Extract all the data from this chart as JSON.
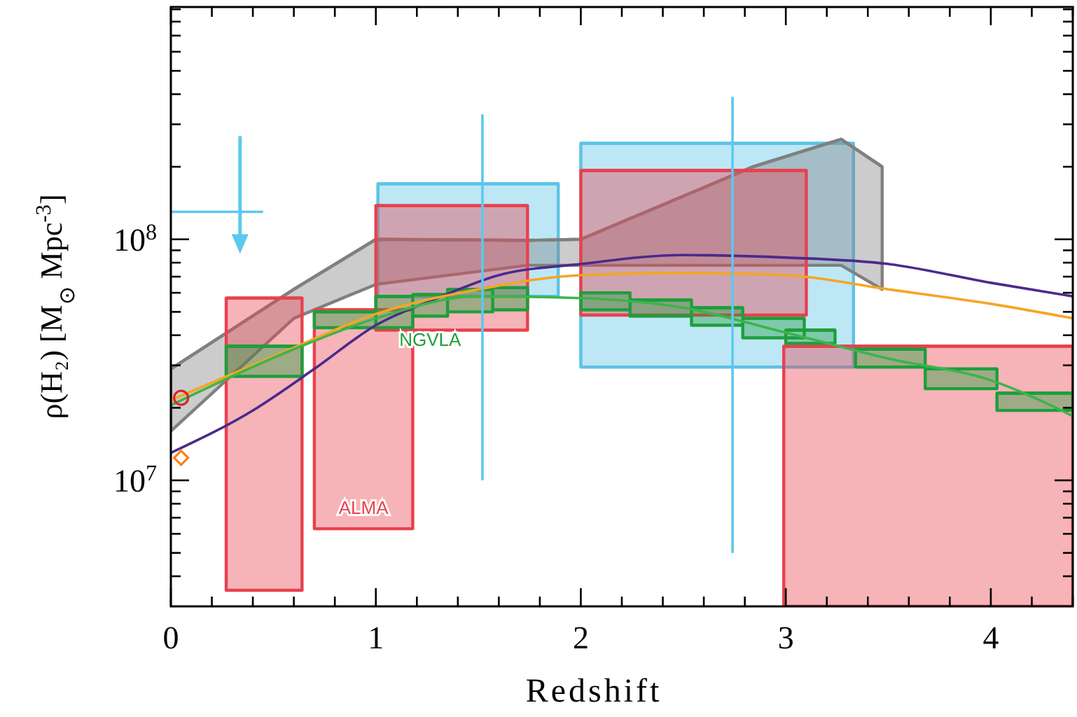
{
  "chart_data": {
    "type": "line",
    "xlabel": "Redshift",
    "ylabel": "ρ(H₂) [M$_{⊙}$ Mpc$^{-3}$]",
    "log": "y",
    "xlim": [
      0,
      4.4
    ],
    "xticks": [
      0,
      {
        "value": 0.2,
        "label": null
      },
      {
        "value": 0.4,
        "label": null
      },
      {
        "value": 0.6,
        "label": null
      },
      {
        "value": 0.8,
        "label": null
      },
      1,
      {
        "value": 1.2,
        "label": null
      },
      {
        "value": 1.4,
        "label": null
      },
      {
        "value": 1.6,
        "label": null
      },
      {
        "value": 1.8,
        "label": null
      },
      2,
      {
        "value": 2.2,
        "label": null
      },
      {
        "value": 2.4,
        "label": null
      },
      {
        "value": 2.6,
        "label": null
      },
      {
        "value": 2.8,
        "label": null
      },
      3,
      {
        "value": 3.2,
        "label": null
      },
      {
        "value": 3.4,
        "label": null
      },
      {
        "value": 3.6,
        "label": null
      },
      {
        "value": 3.8,
        "label": null
      },
      4,
      {
        "value": 4.2,
        "label": null
      },
      {
        "value": 4.4,
        "label": null
      }
    ],
    "ylim": [
      3000000,
      920000000
    ],
    "yticks": [
      {
        "value": 4000000,
        "label": null
      },
      {
        "value": 5000000,
        "label": null
      },
      {
        "value": 6000000,
        "label": null
      },
      {
        "value": 7000000,
        "label": null
      },
      {
        "value": 8000000,
        "label": null
      },
      {
        "value": 9000000,
        "label": null
      },
      {
        "value": 10000000,
        "label": "10$^{7}$"
      },
      {
        "value": 20000000,
        "label": null
      },
      {
        "value": 30000000,
        "label": null
      },
      {
        "value": 40000000,
        "label": null
      },
      {
        "value": 50000000,
        "label": null
      },
      {
        "value": 60000000,
        "label": null
      },
      {
        "value": 70000000,
        "label": null
      },
      {
        "value": 80000000,
        "label": null
      },
      {
        "value": 90000000,
        "label": null
      },
      {
        "value": 100000000,
        "label": "10$^{8}$"
      },
      {
        "value": 200000000,
        "label": null
      },
      {
        "value": 300000000,
        "label": null
      },
      {
        "value": 400000000,
        "label": null
      },
      {
        "value": 500000000,
        "label": null
      },
      {
        "value": 600000000,
        "label": null
      },
      {
        "value": 700000000,
        "label": null
      },
      {
        "value": 800000000,
        "label": null
      },
      {
        "value": 900000000,
        "label": null
      }
    ],
    "series": [
      {
        "color": "#5cc3e6",
        "x": [
          1.01,
          1.89,
          null,
          2.0,
          3.33
        ],
        "values": [
          170000000,
          170000000,
          null,
          250000000,
          250000000
        ],
        "upper": [
          170000000,
          170000000,
          null,
          250000000,
          250000000
        ],
        "lower": [
          58000000,
          58000000,
          null,
          29500000,
          29500000
        ]
      },
      {
        "color": "#808080",
        "x": [
          0,
          0.6,
          1.0,
          1.74,
          2.0,
          2.84,
          3.27,
          3.47
        ],
        "values": [
          29000000,
          62000000,
          100000000,
          99000000,
          100000000,
          200000000,
          260000000,
          200000000
        ],
        "upper": [
          29000000,
          62000000,
          100000000,
          99000000,
          100000000,
          200000000,
          260000000,
          200000000
        ],
        "lower": [
          16000000,
          47000000,
          65000000,
          78000000,
          78000000,
          78000000,
          78000000,
          62000000
        ]
      },
      {
        "name": "ALMA",
        "color": "#e8414e",
        "x": [
          0.27,
          0.64,
          null,
          0.7,
          1.18,
          null,
          1.0,
          1.74,
          null,
          2.0,
          3.1,
          null,
          2.99,
          4.4
        ],
        "values": [
          57000000,
          57000000,
          null,
          51000000,
          51000000,
          null,
          138000000,
          138000000,
          null,
          193000000,
          193000000,
          null,
          36000000,
          36000000
        ],
        "upper": [
          57000000,
          57000000,
          null,
          51000000,
          51000000,
          null,
          138000000,
          138000000,
          null,
          193000000,
          193000000,
          null,
          36000000,
          36000000
        ],
        "lower": [
          3500000,
          3500000,
          null,
          6300000,
          6300000,
          null,
          42000000,
          42000000,
          null,
          48500000,
          48500000,
          null,
          3000000,
          3000000
        ]
      },
      {
        "name": "NGVLA",
        "color": "#1e9e3c",
        "x": [
          0.27,
          0.64,
          null,
          0.7,
          1.0,
          null,
          1.0,
          1.18,
          null,
          1.18,
          1.35,
          null,
          1.35,
          1.57,
          null,
          1.57,
          1.74,
          null,
          2.0,
          2.24,
          null,
          2.24,
          2.54,
          null,
          2.54,
          2.79,
          null,
          2.79,
          3.09,
          null,
          3.0,
          3.24,
          null,
          3.34,
          3.68,
          null,
          3.68,
          4.03,
          null,
          4.03,
          4.4
        ],
        "values": [
          36000000,
          36000000,
          null,
          50000000,
          50000000,
          null,
          58000000,
          58000000,
          null,
          59000000,
          59000000,
          null,
          62000000,
          62000000,
          null,
          63000000,
          63000000,
          null,
          60000000,
          60000000,
          null,
          56000000,
          56000000,
          null,
          52000000,
          52000000,
          null,
          47000000,
          47000000,
          null,
          42000000,
          42000000,
          null,
          35000000,
          35000000,
          null,
          29000000,
          29000000,
          null,
          23000000,
          23000000
        ],
        "upper": [
          36000000,
          36000000,
          null,
          50000000,
          50000000,
          null,
          58000000,
          58000000,
          null,
          59000000,
          59000000,
          null,
          62000000,
          62000000,
          null,
          63000000,
          63000000,
          null,
          60000000,
          60000000,
          null,
          56000000,
          56000000,
          null,
          52000000,
          52000000,
          null,
          47000000,
          47000000,
          null,
          42000000,
          42000000,
          null,
          35000000,
          35000000,
          null,
          29000000,
          29000000,
          null,
          23000000,
          23000000
        ],
        "lower": [
          27000000,
          27000000,
          null,
          43000000,
          43000000,
          null,
          43000000,
          43000000,
          null,
          48000000,
          48000000,
          null,
          50000000,
          50000000,
          null,
          51000000,
          51000000,
          null,
          51000000,
          51000000,
          null,
          48000000,
          48000000,
          null,
          44000000,
          44000000,
          null,
          39000000,
          39000000,
          null,
          37000000,
          37000000,
          null,
          29500000,
          29500000,
          null,
          24000000,
          24000000,
          null,
          19500000,
          19500000
        ]
      },
      {
        "type": "line",
        "color": "#4b2a8c",
        "x": [
          0,
          0.4,
          0.7,
          1.0,
          1.3,
          1.6,
          2.0,
          2.5,
          3.0,
          3.5,
          4.0,
          4.4
        ],
        "values": [
          13000000,
          19500000,
          29000000,
          44000000,
          57000000,
          71000000,
          79000000,
          86000000,
          84000000,
          79000000,
          66000000,
          58000000
        ]
      },
      {
        "type": "line",
        "color": "#f5a623",
        "x": [
          0,
          0.6,
          1.0,
          1.5,
          2.0,
          2.5,
          3.0,
          3.5,
          4.0,
          4.4
        ],
        "values": [
          21500000,
          35500000,
          49000000,
          62000000,
          71000000,
          72500000,
          71000000,
          62000000,
          54000000,
          47000000
        ]
      },
      {
        "type": "line",
        "color": "#3cb44b",
        "x": [
          0,
          0.6,
          1.0,
          1.5,
          2.0,
          2.5,
          3.0,
          3.5,
          4.0,
          4.4
        ],
        "values": [
          20500000,
          35000000,
          47000000,
          58000000,
          57000000,
          52000000,
          41000000,
          32000000,
          26000000,
          18500000
        ]
      },
      {
        "type": "line",
        "color": "#5cc8ee",
        "x": [
          1.52,
          1.52
        ],
        "values": [
          10000000,
          330000000
        ]
      },
      {
        "type": "line",
        "color": "#5cc8ee",
        "x": [
          2.74,
          2.74
        ],
        "values": [
          5000000,
          390000000
        ]
      },
      {
        "type": "line",
        "color": "#5cc8ee",
        "x": [
          0,
          0.45
        ],
        "values": [
          130000000,
          130000000
        ]
      },
      {
        "type": "scatter",
        "marker": "circle",
        "color": "#d62728",
        "x": [
          0.05
        ],
        "values": [
          22000000
        ]
      },
      {
        "type": "scatter",
        "marker": "diamond",
        "color": "#ff7f0e",
        "x": [
          0.05
        ],
        "values": [
          12400000
        ]
      }
    ]
  }
}
